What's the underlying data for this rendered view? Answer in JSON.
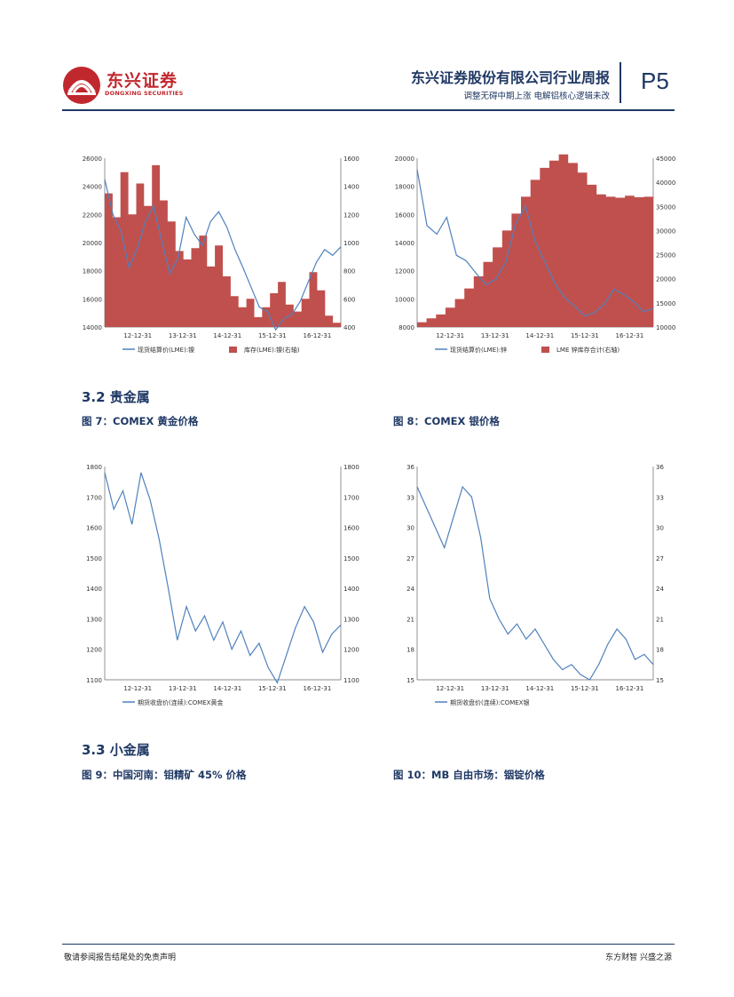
{
  "header": {
    "brand_cn": "东兴证券",
    "brand_en": "DONGXING SECURITIES",
    "title": "东兴证券股份有限公司行业周报",
    "subtitle": "调整无碍中期上涨 电解铝核心逻辑未改",
    "page_number": "P5"
  },
  "colors": {
    "navy": "#1f3864",
    "brand_red": "#c0282e",
    "bar_red": "#c0504d",
    "line_blue": "#4f81bd"
  },
  "sections": [
    {
      "label": "3.2  贵金属"
    },
    {
      "label": "3.3 小金属"
    }
  ],
  "figures": {
    "fig7": "图 7：COMEX 黄金价格",
    "fig8": "图 8：COMEX 银价格",
    "fig9": "图 9：中国河南：钼精矿 45% 价格",
    "fig10": "图 10：MB 自由市场：铟锭价格"
  },
  "chart_data": [
    {
      "id": "top-left",
      "type": "line+bar",
      "x_ticks": [
        "12-12-31",
        "13-12-31",
        "14-12-31",
        "15-12-31",
        "16-12-31"
      ],
      "y_left_ticks": [
        14000,
        16000,
        18000,
        20000,
        22000,
        24000,
        26000
      ],
      "y_right_ticks": [
        400,
        600,
        800,
        1000,
        1200,
        1400,
        1600
      ],
      "legend": [
        "现货结算价(LME):镍",
        "库存(LME):镍(右轴)"
      ],
      "line_series": [
        24500,
        22000,
        20800,
        18200,
        19600,
        21500,
        22600,
        20100,
        17800,
        18900,
        21800,
        20600,
        19800,
        21500,
        22200,
        21100,
        19500,
        18200,
        16800,
        15400,
        15100,
        13800,
        14600,
        14900,
        15800,
        17200,
        18600,
        19500,
        19100,
        19700
      ],
      "bar_series": [
        1350,
        1180,
        1500,
        1200,
        1420,
        1260,
        1550,
        1300,
        1150,
        940,
        880,
        960,
        1050,
        830,
        980,
        760,
        620,
        540,
        600,
        470,
        540,
        640,
        720,
        560,
        510,
        600,
        790,
        660,
        480,
        430
      ]
    },
    {
      "id": "top-right",
      "type": "line+bar",
      "x_ticks": [
        "12-12-31",
        "13-12-31",
        "14-12-31",
        "15-12-31",
        "16-12-31"
      ],
      "y_left_ticks": [
        8000,
        10000,
        12000,
        14000,
        16000,
        18000,
        20000
      ],
      "y_right_ticks": [
        10000,
        15000,
        20000,
        25000,
        30000,
        35000,
        40000,
        45000
      ],
      "legend": [
        "现货结算价(LME):锌",
        "LME 锌库存合计(右轴)"
      ],
      "line_series": [
        19200,
        15200,
        14600,
        15800,
        13100,
        12700,
        11800,
        11000,
        11400,
        12600,
        15300,
        16600,
        14100,
        12600,
        11100,
        10100,
        9500,
        8800,
        9000,
        9600,
        10700,
        10300,
        9800,
        9100,
        9300
      ],
      "bar_series": [
        11000,
        11800,
        12600,
        14000,
        15800,
        18000,
        20500,
        23500,
        26500,
        30000,
        33500,
        37000,
        40500,
        43000,
        44500,
        45800,
        44000,
        42000,
        39500,
        37500,
        37000,
        36800,
        37200,
        36900,
        37000
      ]
    },
    {
      "id": "fig7",
      "type": "line",
      "x_ticks": [
        "12-12-31",
        "13-12-31",
        "14-12-31",
        "15-12-31",
        "16-12-31"
      ],
      "y_left_ticks": [
        1100,
        1200,
        1300,
        1400,
        1500,
        1600,
        1700,
        1800
      ],
      "y_right_ticks": [
        1100,
        1200,
        1300,
        1400,
        1500,
        1600,
        1700,
        1800
      ],
      "legend": [
        "期货收盘价(连续):COMEX黄金"
      ],
      "line_series": [
        1780,
        1660,
        1720,
        1610,
        1780,
        1690,
        1560,
        1400,
        1230,
        1340,
        1260,
        1310,
        1230,
        1290,
        1200,
        1260,
        1180,
        1220,
        1140,
        1090,
        1180,
        1270,
        1340,
        1290,
        1190,
        1250,
        1280
      ]
    },
    {
      "id": "fig8",
      "type": "line",
      "x_ticks": [
        "12-12-31",
        "13-12-31",
        "14-12-31",
        "15-12-31",
        "16-12-31"
      ],
      "y_left_ticks": [
        15,
        18,
        21,
        24,
        27,
        30,
        33,
        36
      ],
      "y_right_ticks": [
        15,
        18,
        21,
        24,
        27,
        30,
        33,
        36
      ],
      "legend": [
        "期货收盘价(连续):COMEX银"
      ],
      "line_series": [
        34,
        32,
        30,
        28,
        31,
        34,
        33,
        29,
        23,
        21,
        19.5,
        20.5,
        19,
        20,
        18.5,
        17,
        16,
        16.5,
        15.5,
        15,
        16.5,
        18.5,
        20,
        19,
        17,
        17.5,
        16.5
      ]
    }
  ]
}
